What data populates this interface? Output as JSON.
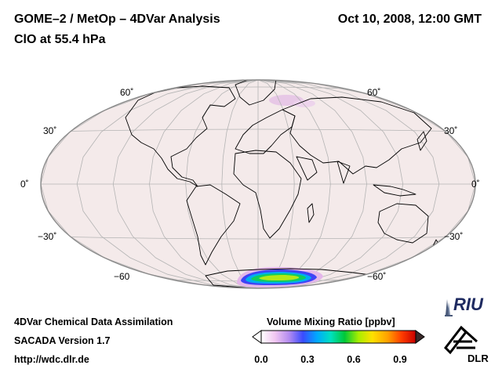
{
  "header": {
    "title": "GOME–2 / MetOp – 4DVar Analysis",
    "subtitle": "ClO at 55.4 hPa",
    "date": "Oct 10, 2008, 12:00 GMT"
  },
  "map": {
    "projection": "Hammer-Aitoff (world)",
    "parallels_deg": [
      60,
      30,
      0,
      -30,
      -60
    ],
    "lat_labels_left": [
      "60˚",
      "30˚",
      "0˚",
      "−30˚",
      "−60"
    ],
    "lat_labels_right": [
      "60˚",
      "30˚",
      "0˚",
      "−30˚",
      "−60˚"
    ],
    "background_color": "#f4eaea",
    "features": [
      {
        "name": "Antarctic ClO maximum",
        "value_ppbv": 0.9
      },
      {
        "name": "Weak Arctic enhancement",
        "value_ppbv": 0.1
      }
    ]
  },
  "colorbar": {
    "title": "Volume Mixing Ratio [ppbv]",
    "range": [
      0.0,
      1.0
    ],
    "ticks": [
      "0.0",
      "0.3",
      "0.6",
      "0.9"
    ],
    "tick_values": [
      0.0,
      0.3,
      0.6,
      0.9
    ],
    "colors": [
      "#ffffff",
      "#f1c6f1",
      "#b48cf0",
      "#3a4bff",
      "#00a8ff",
      "#00e0c0",
      "#00c838",
      "#a8ee00",
      "#ffe000",
      "#ffa000",
      "#ff3c00",
      "#c80000"
    ]
  },
  "footer": {
    "line1": "4DVar Chemical Data Assimilation",
    "line2": "SACADA Version 1.7",
    "line3": "http://wdc.dlr.de"
  },
  "logos": {
    "riu": "RIU",
    "dlr": "DLR"
  }
}
